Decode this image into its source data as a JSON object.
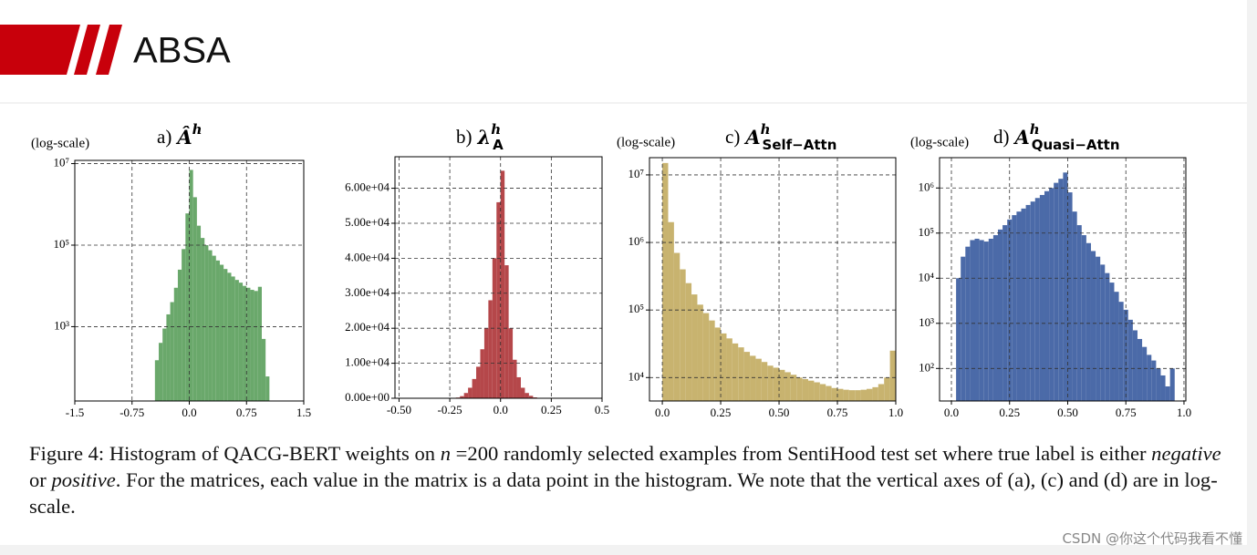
{
  "header": {
    "title": "ABSA"
  },
  "chart_data": [
    {
      "type": "histogram",
      "label": "a)",
      "symbol": "Â",
      "sup": "h",
      "y_note": "(log-scale)",
      "log_y": true,
      "grid": true,
      "color": "#6aa86b",
      "bins": [
        -0.45,
        -0.4,
        -0.35,
        -0.3,
        -0.25,
        -0.2,
        -0.15,
        -0.1,
        -0.05,
        0,
        0.05,
        0.1,
        0.15,
        0.2,
        0.25,
        0.3,
        0.35,
        0.4,
        0.45,
        0.5,
        0.55,
        0.6,
        0.65,
        0.7,
        0.75,
        0.8,
        0.85,
        0.9,
        0.95,
        1,
        1.05
      ],
      "values": [
        150,
        400,
        900,
        2000,
        4000,
        9000,
        25000,
        80000,
        600000,
        7000000,
        1500000,
        300000,
        150000,
        100000,
        75000,
        55000,
        42000,
        33000,
        26000,
        21000,
        17000,
        14000,
        12000,
        10000,
        9000,
        8000,
        7500,
        9500,
        500,
        60
      ],
      "xlim": [
        -1.5,
        1.5
      ],
      "xticks": [
        -1.5,
        -0.75,
        {
          "value": 0,
          "label": "0.0"
        },
        0.75,
        1.5
      ],
      "ylim": [
        15,
        12000000
      ],
      "yticks": [
        {
          "value": 1000,
          "label": "10³"
        },
        {
          "value": 100000,
          "label": "10⁵"
        },
        {
          "value": 10000000,
          "label": "10⁷"
        }
      ]
    },
    {
      "type": "histogram",
      "label": "b)",
      "symbol": "λ",
      "sup": "h",
      "sub": "A",
      "log_y": false,
      "grid": true,
      "color": "#b5474a",
      "bins": [
        -0.22,
        -0.2,
        -0.18,
        -0.16,
        -0.14,
        -0.12,
        -0.1,
        -0.08,
        -0.06,
        -0.04,
        -0.02,
        0,
        0.02,
        0.04,
        0.06,
        0.08,
        0.1,
        0.12,
        0.14,
        0.16,
        0.18
      ],
      "values": [
        200,
        600,
        1500,
        3000,
        5500,
        9000,
        14000,
        20000,
        28000,
        40000,
        56000,
        65000,
        38000,
        20000,
        11000,
        6000,
        3000,
        1500,
        700,
        250
      ],
      "xlim": [
        -0.52,
        0.5
      ],
      "xticks": [
        {
          "value": -0.5,
          "label": "-0.50"
        },
        -0.25,
        {
          "value": 0,
          "label": "0.0"
        },
        0.25,
        0.5
      ],
      "ylim": [
        0,
        69000
      ],
      "yticks": [
        {
          "value": 0,
          "label": "0.00e+00"
        },
        {
          "value": 10000,
          "label": "1.00e+04"
        },
        {
          "value": 20000,
          "label": "2.00e+04"
        },
        {
          "value": 30000,
          "label": "3.00e+04"
        },
        {
          "value": 40000,
          "label": "4.00e+04"
        },
        {
          "value": 50000,
          "label": "5.00e+04"
        },
        {
          "value": 60000,
          "label": "6.00e+04"
        }
      ]
    },
    {
      "type": "histogram",
      "label": "c)",
      "symbol": "A",
      "sup": "h",
      "sub": "Self−Attn",
      "y_note": "(log-scale)",
      "log_y": true,
      "grid": true,
      "color": "#c8b36f",
      "bins": [
        0,
        0.025,
        0.05,
        0.075,
        0.1,
        0.125,
        0.15,
        0.175,
        0.2,
        0.225,
        0.25,
        0.275,
        0.3,
        0.325,
        0.35,
        0.375,
        0.4,
        0.425,
        0.45,
        0.475,
        0.5,
        0.525,
        0.55,
        0.575,
        0.6,
        0.625,
        0.65,
        0.675,
        0.7,
        0.725,
        0.75,
        0.775,
        0.8,
        0.825,
        0.85,
        0.875,
        0.9,
        0.925,
        0.95,
        0.975,
        1.0
      ],
      "values": [
        15000000,
        2000000,
        700000,
        400000,
        250000,
        170000,
        120000,
        90000,
        70000,
        55000,
        45000,
        38000,
        32000,
        28000,
        24000,
        21000,
        19000,
        17000,
        15000,
        14000,
        13000,
        12000,
        11000,
        10000,
        9500,
        9000,
        8500,
        8000,
        7500,
        7000,
        6800,
        6600,
        6500,
        6500,
        6600,
        6800,
        7200,
        8000,
        10000,
        25000
      ],
      "xlim": [
        -0.055,
        1.0
      ],
      "xticks": [
        {
          "value": 0,
          "label": "0.0"
        },
        0.25,
        {
          "value": 0.5,
          "label": "0.50"
        },
        0.75,
        {
          "value": 1,
          "label": "1.0"
        }
      ],
      "ylim": [
        4500,
        18000000
      ],
      "yticks": [
        {
          "value": 10000,
          "label": "10⁴"
        },
        {
          "value": 100000,
          "label": "10⁵"
        },
        {
          "value": 1000000,
          "label": "10⁶"
        },
        {
          "value": 10000000,
          "label": "10⁷"
        }
      ]
    },
    {
      "type": "histogram",
      "label": "d)",
      "symbol": "A",
      "sup": "h",
      "sub": "Quasi−Attn",
      "y_note": "(log-scale)",
      "log_y": true,
      "grid": true,
      "color": "#4b6aa8",
      "bins": [
        0.02,
        0.04,
        0.06,
        0.08,
        0.1,
        0.12,
        0.14,
        0.16,
        0.18,
        0.2,
        0.22,
        0.24,
        0.26,
        0.28,
        0.3,
        0.32,
        0.34,
        0.36,
        0.38,
        0.4,
        0.42,
        0.44,
        0.46,
        0.48,
        0.5,
        0.52,
        0.54,
        0.56,
        0.58,
        0.6,
        0.62,
        0.64,
        0.66,
        0.68,
        0.7,
        0.72,
        0.74,
        0.76,
        0.78,
        0.8,
        0.82,
        0.84,
        0.86,
        0.88,
        0.9,
        0.92,
        0.94,
        0.96
      ],
      "values": [
        10000,
        30000,
        50000,
        70000,
        75000,
        70000,
        65000,
        75000,
        90000,
        120000,
        150000,
        200000,
        250000,
        300000,
        350000,
        420000,
        500000,
        600000,
        700000,
        850000,
        1000000,
        1300000,
        1600000,
        2200000,
        800000,
        300000,
        150000,
        90000,
        60000,
        40000,
        30000,
        20000,
        13000,
        8000,
        5000,
        3000,
        2000,
        1200,
        700,
        450,
        300,
        200,
        150,
        100,
        70,
        40,
        100
      ],
      "xlim": [
        -0.051,
        1.008
      ],
      "xticks": [
        {
          "value": 0,
          "label": "0.0"
        },
        0.25,
        {
          "value": 0.5,
          "label": "0.50"
        },
        0.75,
        {
          "value": 1,
          "label": "1.0"
        }
      ],
      "ylim": [
        19,
        4700000
      ],
      "yticks": [
        {
          "value": 100,
          "label": "10²"
        },
        {
          "value": 1000,
          "label": "10³"
        },
        {
          "value": 10000,
          "label": "10⁴"
        },
        {
          "value": 100000,
          "label": "10⁵"
        },
        {
          "value": 1000000,
          "label": "10⁶"
        }
      ]
    }
  ],
  "caption": [
    {
      "text": "Figure 4: Histogram of QACG-BERT weights on "
    },
    {
      "text": "n",
      "italic": true
    },
    {
      "text": " =200 randomly selected examples from SentiHood test set where true label is either "
    },
    {
      "text": "negative",
      "italic": true
    },
    {
      "text": " or "
    },
    {
      "text": "positive",
      "italic": true
    },
    {
      "text": ". For the matrices, each value in the matrix is a data point in the histogram. We note that the vertical axes of (a), (c) and (d) are in log-scale."
    }
  ],
  "watermark": "CSDN @你这个代码我看不懂"
}
